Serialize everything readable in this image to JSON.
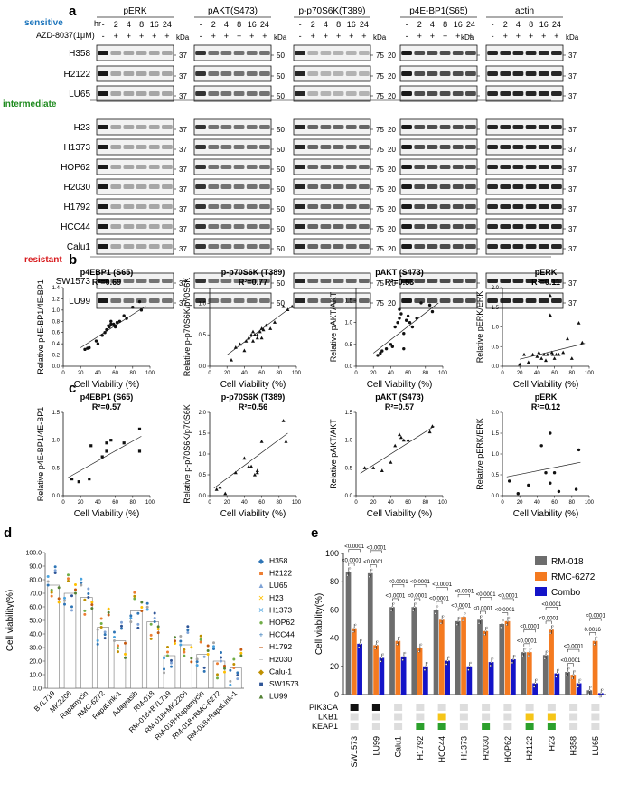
{
  "panels": {
    "a": "a",
    "b": "b",
    "c": "c",
    "d": "d",
    "e": "e"
  },
  "blot": {
    "hr_label": "hr",
    "drug_label": "AZD-8037(1μM)",
    "lanes_hr": [
      "-",
      "2",
      "4",
      "8",
      "16",
      "24"
    ],
    "lanes_drug": [
      "-",
      "+",
      "+",
      "+",
      "+",
      "+"
    ],
    "kda": "kDa",
    "antibodies": [
      {
        "name": "pERK",
        "marker": "37"
      },
      {
        "name": "pAKT(S473)",
        "marker": "50"
      },
      {
        "name": "p-p70S6K(T389)",
        "marker": "75"
      },
      {
        "name": "p4E-BP1(S65)",
        "marker": "20"
      },
      {
        "name": "actin",
        "marker": "37"
      }
    ],
    "groups": [
      {
        "label": "sensitive",
        "color": "#1c75bc",
        "lines": [
          "H358",
          "H2122",
          "LU65"
        ]
      },
      {
        "label": "intermediate",
        "color": "#1e8a1e",
        "lines": [
          "H23",
          "H1373",
          "HOP62",
          "H2030",
          "H1792",
          "HCC44",
          "Calu1"
        ]
      },
      {
        "label": "resistant",
        "color": "#d7191c",
        "lines": [
          "SW1573",
          "LU99"
        ]
      }
    ]
  },
  "chart_data": [
    {
      "type": "scatter",
      "panel": "b",
      "title": "p4EBP1 (S65)",
      "r2": "R²=0.69",
      "xlabel": "Cell Viability (%)",
      "ylabel": "Relative p4E-BP1/4E-BP1",
      "xticks": [
        "0",
        "20",
        "40",
        "60",
        "80",
        "100"
      ],
      "yticks": [
        "0.0",
        "0.2",
        "0.4",
        "0.6",
        "0.8",
        "1.0",
        "1.2",
        "1.4"
      ],
      "xlim": [
        0,
        100
      ],
      "ylim": [
        0,
        1.4
      ],
      "marker": "circle",
      "x": [
        25,
        28,
        30,
        38,
        40,
        45,
        48,
        50,
        52,
        53,
        55,
        55,
        58,
        60,
        60,
        62,
        65,
        70,
        73,
        80,
        88,
        90
      ],
      "y": [
        0.3,
        0.32,
        0.33,
        0.45,
        0.4,
        0.55,
        0.6,
        0.65,
        0.72,
        0.7,
        0.75,
        0.8,
        0.75,
        0.72,
        0.7,
        0.78,
        0.8,
        0.9,
        0.85,
        1.05,
        1.15,
        1.0
      ],
      "fit": [
        [
          20,
          0.33
        ],
        [
          95,
          1.07
        ]
      ]
    },
    {
      "type": "scatter",
      "panel": "b",
      "title": "p-p70S6K (T389)",
      "r2": "R²=0.77",
      "xlabel": "Cell Viability (%)",
      "ylabel": "Relative p-p70S6K/p70S6K",
      "xticks": [
        "0",
        "20",
        "40",
        "60",
        "80",
        "100"
      ],
      "yticks": [
        "0.0",
        "0.5",
        "1.0"
      ],
      "xlim": [
        0,
        100
      ],
      "ylim": [
        0,
        1.25
      ],
      "marker": "triangle",
      "x": [
        25,
        30,
        35,
        40,
        42,
        45,
        48,
        50,
        50,
        52,
        55,
        55,
        58,
        60,
        60,
        62,
        65,
        70,
        75,
        85,
        90,
        95
      ],
      "y": [
        0.1,
        0.3,
        0.35,
        0.25,
        0.4,
        0.45,
        0.5,
        0.4,
        0.55,
        0.5,
        0.5,
        0.45,
        0.55,
        0.6,
        0.45,
        0.58,
        0.65,
        0.6,
        0.7,
        0.95,
        0.9,
        0.95
      ],
      "fit": [
        [
          20,
          0.18
        ],
        [
          95,
          0.95
        ]
      ]
    },
    {
      "type": "scatter",
      "panel": "b",
      "title": "pAKT (S473)",
      "r2": "R²=0.53",
      "xlabel": "Cell Viability (%)",
      "ylabel": "Relative pAKT/AKT",
      "xticks": [
        "0",
        "20",
        "40",
        "60",
        "80",
        "100"
      ],
      "yticks": [
        "0.0",
        "0.5",
        "1.0",
        "1.5"
      ],
      "xlim": [
        0,
        100
      ],
      "ylim": [
        0,
        1.8
      ],
      "marker": "circle",
      "x": [
        25,
        28,
        30,
        35,
        40,
        42,
        45,
        48,
        50,
        50,
        52,
        55,
        55,
        58,
        60,
        62,
        65,
        70,
        75,
        85,
        88
      ],
      "y": [
        0.25,
        0.3,
        0.35,
        0.4,
        0.5,
        0.45,
        0.9,
        1.0,
        1.1,
        1.3,
        1.2,
        0.4,
        0.75,
        1.05,
        1.15,
        1.0,
        0.9,
        1.1,
        1.45,
        1.4,
        1.25
      ],
      "fit": [
        [
          20,
          0.3
        ],
        [
          95,
          1.45
        ]
      ]
    },
    {
      "type": "scatter",
      "panel": "b",
      "title": "pERK",
      "r2": "R²=0.11",
      "xlabel": "Cell Viability (%)",
      "ylabel": "Relative pERK/ERK",
      "xticks": [
        "0",
        "20",
        "40",
        "60",
        "80",
        "100"
      ],
      "yticks": [
        "0.0",
        "0.5",
        "1.0",
        "1.5",
        "2.0"
      ],
      "xlim": [
        0,
        100
      ],
      "ylim": [
        0,
        2.0
      ],
      "marker": "triangle",
      "x": [
        20,
        25,
        30,
        35,
        40,
        42,
        45,
        48,
        50,
        52,
        55,
        55,
        57,
        58,
        60,
        62,
        65,
        70,
        75,
        80,
        88,
        92
      ],
      "y": [
        0.05,
        0.3,
        0.1,
        0.3,
        0.25,
        0.35,
        0.2,
        0.3,
        0.15,
        0.3,
        1.8,
        1.3,
        0.35,
        0.3,
        0.2,
        0.3,
        0.3,
        0.35,
        0.7,
        0.2,
        1.1,
        0.6
      ],
      "fit": [
        [
          20,
          0.18
        ],
        [
          95,
          0.58
        ]
      ]
    },
    {
      "type": "scatter",
      "panel": "c",
      "title": "p4EBP1 (S65)",
      "r2": "R²=0.57",
      "xlabel": "Cell Viability (%)",
      "ylabel": "Relative p4E-BP1/4E-BP1",
      "xticks": [
        "0",
        "20",
        "40",
        "60",
        "80",
        "100"
      ],
      "yticks": [
        "0.0",
        "0.5",
        "1.0",
        "1.5"
      ],
      "xlim": [
        0,
        100
      ],
      "ylim": [
        0,
        1.5
      ],
      "marker": "square",
      "x": [
        10,
        18,
        30,
        32,
        45,
        50,
        50,
        55,
        70,
        88,
        88
      ],
      "y": [
        0.3,
        0.25,
        0.3,
        0.9,
        0.7,
        0.8,
        0.95,
        1.0,
        0.95,
        0.8,
        1.2
      ],
      "fit": [
        [
          5,
          0.32
        ],
        [
          90,
          1.07
        ]
      ]
    },
    {
      "type": "scatter",
      "panel": "c",
      "title": "p-p70S6K (T389)",
      "r2": "R²=0.56",
      "xlabel": "Cell Viability (%)",
      "ylabel": "Relative p-p70S6K/p70S6K",
      "xticks": [
        "0",
        "20",
        "40",
        "60",
        "80",
        "100"
      ],
      "yticks": [
        "0.0",
        "0.5",
        "1.0",
        "1.5",
        "2.0"
      ],
      "xlim": [
        0,
        100
      ],
      "ylim": [
        0,
        2.0
      ],
      "marker": "triangle",
      "x": [
        8,
        12,
        18,
        30,
        40,
        45,
        48,
        52,
        55,
        55,
        60,
        85,
        88
      ],
      "y": [
        0.15,
        0.2,
        0.05,
        0.55,
        0.9,
        0.7,
        0.7,
        0.5,
        0.55,
        0.6,
        1.3,
        1.8,
        1.3
      ],
      "fit": [
        [
          5,
          0.18
        ],
        [
          90,
          1.5
        ]
      ]
    },
    {
      "type": "scatter",
      "panel": "c",
      "title": "pAKT (S473)",
      "r2": "R²=0.57",
      "xlabel": "Cell Viability (%)",
      "ylabel": "Relative pAKT/AKT",
      "xticks": [
        "0",
        "20",
        "40",
        "60",
        "80",
        "100"
      ],
      "yticks": [
        "0.0",
        "0.5",
        "1.0",
        "1.5"
      ],
      "xlim": [
        0,
        100
      ],
      "ylim": [
        0,
        1.5
      ],
      "marker": "triangle",
      "x": [
        10,
        20,
        30,
        40,
        45,
        50,
        52,
        55,
        60,
        85,
        88
      ],
      "y": [
        0.5,
        0.5,
        0.45,
        0.6,
        0.9,
        1.1,
        1.05,
        1.0,
        1.0,
        1.15,
        1.25
      ],
      "fit": [
        [
          5,
          0.4
        ],
        [
          90,
          1.25
        ]
      ]
    },
    {
      "type": "scatter",
      "panel": "c",
      "title": "pERK",
      "r2": "R²=0.12",
      "xlabel": "Cell Viability (%)",
      "ylabel": "Relative pERK/ERK",
      "xticks": [
        "0",
        "20",
        "40",
        "60",
        "80",
        "100"
      ],
      "yticks": [
        "0.0",
        "0.5",
        "1.0",
        "1.5",
        "2.0"
      ],
      "xlim": [
        0,
        100
      ],
      "ylim": [
        0,
        2.0
      ],
      "marker": "circle",
      "x": [
        8,
        18,
        30,
        45,
        50,
        55,
        55,
        60,
        65,
        85,
        88
      ],
      "y": [
        0.35,
        0.05,
        0.25,
        1.2,
        0.55,
        1.5,
        0.3,
        0.55,
        0.1,
        0.15,
        1.1
      ],
      "fit": [
        [
          5,
          0.45
        ],
        [
          90,
          0.8
        ]
      ]
    },
    {
      "type": "bar",
      "panel": "d",
      "ylabel": "Cell viability(%)",
      "yticks": [
        "0.0",
        "10.0",
        "20.0",
        "30.0",
        "40.0",
        "50.0",
        "60.0",
        "70.0",
        "80.0",
        "90.0",
        "100.0"
      ],
      "ylim": [
        0,
        100
      ],
      "categories": [
        "BYL719",
        "MK2206",
        "Rapamycin",
        "RMC-6272",
        "RapaLink-1",
        "Adagrasib",
        "RM-018",
        "RM-018+BYL719",
        "RM-018+MK2206",
        "RM-018+Rapamycin",
        "RM-018+RMC-6272",
        "RM-018+RapaLink-1"
      ],
      "values": [
        76,
        70,
        67,
        45,
        35,
        57,
        49,
        24,
        32,
        25,
        20,
        15
      ],
      "legend": [
        {
          "name": "H358",
          "color": "#2e75b6",
          "sym": "◆"
        },
        {
          "name": "H2122",
          "color": "#ed7d31",
          "sym": "■"
        },
        {
          "name": "LU65",
          "color": "#7fa3d6",
          "sym": "▲"
        },
        {
          "name": "H23",
          "color": "#ffc000",
          "sym": "✕"
        },
        {
          "name": "H1373",
          "color": "#4aa3df",
          "sym": "✕"
        },
        {
          "name": "HOP62",
          "color": "#70ad47",
          "sym": "●"
        },
        {
          "name": "HCC44",
          "color": "#2e75b6",
          "sym": "+"
        },
        {
          "name": "H1792",
          "color": "#c55a11",
          "sym": "−"
        },
        {
          "name": "H2030",
          "color": "#a5a5a5",
          "sym": "−"
        },
        {
          "name": "Calu-1",
          "color": "#bf9000",
          "sym": "◆"
        },
        {
          "name": "SW1573",
          "color": "#2f5597",
          "sym": "■"
        },
        {
          "name": "LU99",
          "color": "#548235",
          "sym": "▲"
        }
      ]
    },
    {
      "type": "bar",
      "panel": "e",
      "ylabel": "Cell viability(%)",
      "yticks": [
        "0",
        "20",
        "40",
        "60",
        "80",
        "100"
      ],
      "ylim": [
        0,
        100
      ],
      "categories": [
        "SW1573",
        "LU99",
        "Calu1",
        "H1792",
        "HCC44",
        "H1373",
        "H2030",
        "HOP62",
        "H2122",
        "H23",
        "H358",
        "LU65"
      ],
      "series": [
        {
          "name": "RM-018",
          "color": "#6d6d6d",
          "values": [
            87,
            86,
            62,
            62,
            60,
            52,
            53,
            50,
            30,
            28,
            16,
            3
          ]
        },
        {
          "name": "RMC-6272",
          "color": "#f47a20",
          "values": [
            47,
            35,
            38,
            33,
            53,
            55,
            45,
            52,
            30,
            46,
            14,
            38
          ]
        },
        {
          "name": "Combo",
          "color": "#1414c8",
          "values": [
            36,
            26,
            27,
            20,
            24,
            20,
            23,
            25,
            8,
            15,
            8,
            1
          ]
        }
      ],
      "pvalues": [
        "<0.0001",
        "<0.0001",
        "<0.0001",
        "<0.0001",
        "<0.0001",
        "<0.0001",
        "<0.0001",
        "<0.0001",
        "<0.0001",
        "<0.0001",
        "<0.0001",
        "<0.0001",
        "<0.0001",
        "<0.0001",
        "<0.0001",
        "<0.0001",
        "<0.0001",
        "<0.0001",
        "<0.0001",
        "<0.0001",
        "<0.0001",
        "<0.0001",
        "0.0016",
        "<0.0001"
      ],
      "mutation_rows": [
        "PIK3CA",
        "LKB1",
        "KEAP1"
      ]
    }
  ]
}
